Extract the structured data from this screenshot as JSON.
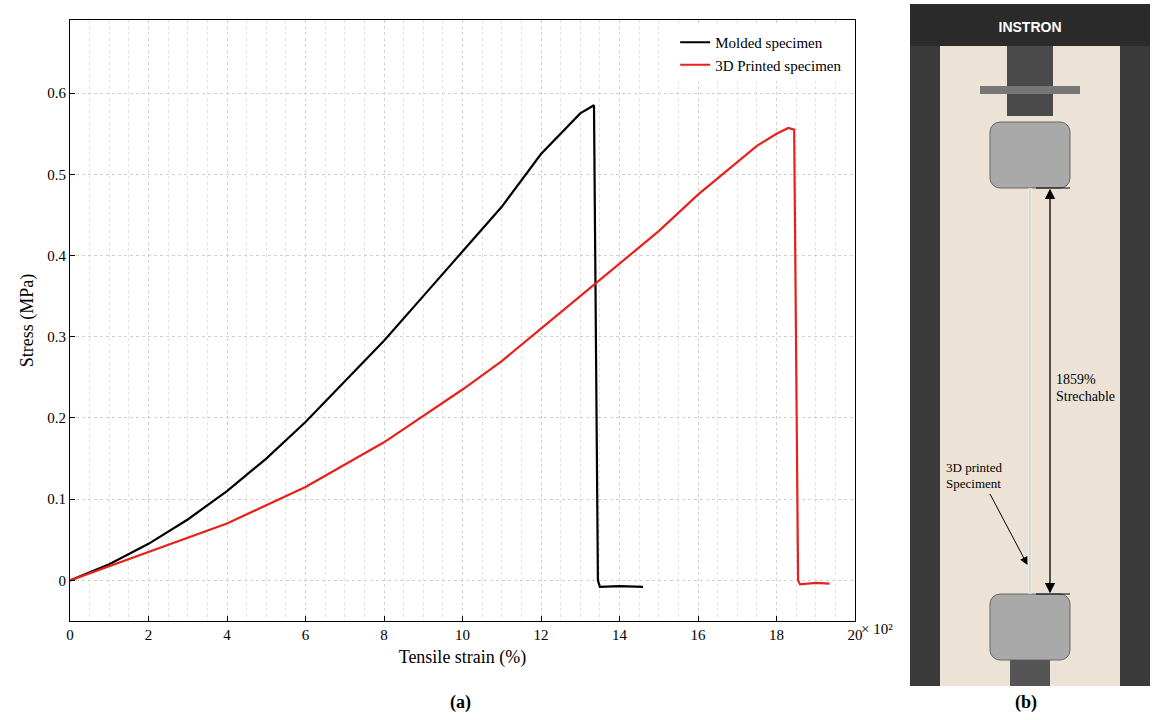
{
  "chart_data": {
    "type": "line",
    "x_label": "Tensile strain (%)",
    "y_label": "Stress (MPa)",
    "xlim": [
      0,
      20
    ],
    "xticks": [
      0,
      2,
      4,
      6,
      8,
      10,
      12,
      14,
      16,
      18,
      20
    ],
    "ylim": [
      -0.05,
      0.69
    ],
    "yticks": [
      0,
      0.1,
      0.2,
      0.3,
      0.4,
      0.5,
      0.6
    ],
    "grid": true,
    "legend": "upper right",
    "annotations": [
      {
        "text": "× 10²"
      }
    ],
    "series": [
      {
        "name": "Molded specimen",
        "color": "#000000",
        "x": [
          0,
          1,
          2,
          3,
          4,
          5,
          6,
          7,
          8,
          9,
          10,
          11,
          12,
          13,
          13.35,
          13.45,
          13.5,
          14,
          14.6
        ],
        "values": [
          0,
          0.02,
          0.045,
          0.075,
          0.11,
          0.15,
          0.195,
          0.245,
          0.295,
          0.35,
          0.405,
          0.46,
          0.525,
          0.575,
          0.585,
          0.0,
          -0.008,
          -0.007,
          -0.008
        ]
      },
      {
        "name": "3D Printed specimen",
        "color": "#e8201a",
        "x": [
          0,
          2,
          4,
          6,
          8,
          10,
          11,
          12,
          13,
          13.5,
          14,
          15,
          16,
          17,
          17.5,
          18,
          18.3,
          18.45,
          18.55,
          18.6,
          19,
          19.35
        ],
        "values": [
          0,
          0.035,
          0.07,
          0.115,
          0.17,
          0.235,
          0.27,
          0.31,
          0.35,
          0.37,
          0.39,
          0.43,
          0.475,
          0.515,
          0.535,
          0.55,
          0.557,
          0.555,
          0.0,
          -0.005,
          -0.003,
          -0.004
        ]
      }
    ]
  },
  "panels": {
    "a": "(a)",
    "b": "(b)"
  },
  "photo": {
    "brand": "INSTRON",
    "stretch_label": [
      "1859%",
      "Strechable"
    ],
    "specimen_label": [
      "3D printed",
      "Speciment"
    ]
  }
}
